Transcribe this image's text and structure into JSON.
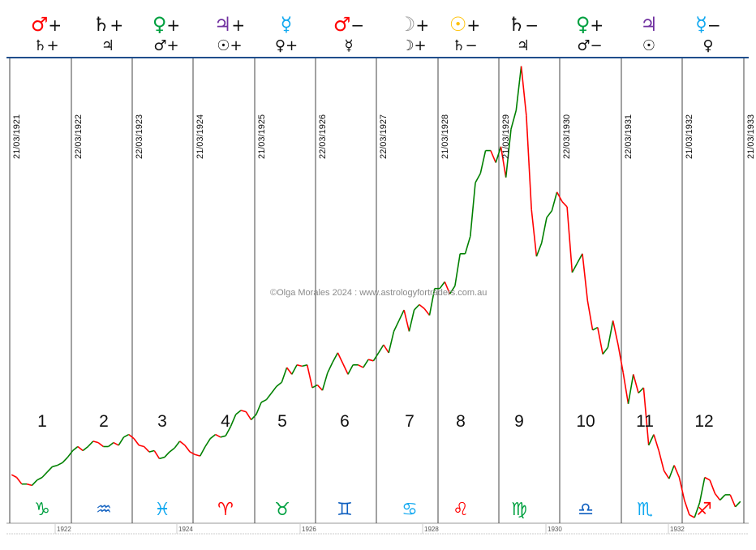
{
  "watermark": "©Olga Morales 2024 : www.astrologyfortraders.com.au",
  "columns": [
    {
      "n": "1",
      "date": "21/03/1921",
      "top": "♂",
      "top_color": "#ff0000",
      "top_sign": "+",
      "bottom": "♄",
      "bottom_sign": "+",
      "zodiac": "♑",
      "zodiac_color": "#00a040"
    },
    {
      "n": "2",
      "date": "22/03/1922",
      "top": "♄",
      "top_color": "#111111",
      "top_sign": "+",
      "bottom": "♃",
      "bottom_sign": "",
      "zodiac": "♒",
      "zodiac_color": "#1060c0"
    },
    {
      "n": "3",
      "date": "22/03/1923",
      "top": "♀",
      "top_color": "#00a040",
      "top_sign": "+",
      "bottom": "♂",
      "bottom_sign": "+",
      "zodiac": "♓",
      "zodiac_color": "#10a8f0"
    },
    {
      "n": "4",
      "date": "21/03/1924",
      "top": "♃",
      "top_color": "#7030a0",
      "top_sign": "+",
      "bottom": "☉",
      "bottom_sign": "+",
      "zodiac": "♈",
      "zodiac_color": "#ff0000"
    },
    {
      "n": "5",
      "date": "21/03/1925",
      "top": "☿",
      "top_color": "#10a8f0",
      "top_sign": "",
      "bottom": "♀",
      "bottom_sign": "+",
      "zodiac": "♉",
      "zodiac_color": "#00a040"
    },
    {
      "n": "6",
      "date": "22/03/1926",
      "top": "♂",
      "top_color": "#ff0000",
      "top_sign": "−",
      "bottom": "☿",
      "bottom_sign": "",
      "zodiac": "♊",
      "zodiac_color": "#1060c0"
    },
    {
      "n": "7",
      "date": "22/03/1927",
      "top": "☽",
      "top_color": "#909090",
      "top_sign": "+",
      "bottom": "☽",
      "bottom_sign": "+",
      "zodiac": "♋",
      "zodiac_color": "#10a8f0"
    },
    {
      "n": "8",
      "date": "21/03/1928",
      "top": "☉",
      "top_color": "#ffc000",
      "top_sign": "+",
      "bottom": "♄",
      "bottom_sign": "−",
      "zodiac": "♌",
      "zodiac_color": "#ff0000"
    },
    {
      "n": "9",
      "date": "21/03/1929",
      "top": "♄",
      "top_color": "#111111",
      "top_sign": "−",
      "bottom": "♃",
      "bottom_sign": "",
      "zodiac": "♍",
      "zodiac_color": "#00a040"
    },
    {
      "n": "10",
      "date": "22/03/1930",
      "top": "♀",
      "top_color": "#00a040",
      "top_sign": "+",
      "bottom": "♂",
      "bottom_sign": "−",
      "zodiac": "♎",
      "zodiac_color": "#1060c0"
    },
    {
      "n": "11",
      "date": "22/03/1931",
      "top": "♃",
      "top_color": "#7030a0",
      "top_sign": "",
      "bottom": "☉",
      "bottom_sign": "",
      "zodiac": "♏",
      "zodiac_color": "#10a8f0"
    },
    {
      "n": "12",
      "date": "21/03/1932",
      "top": "☿",
      "top_color": "#10a8f0",
      "top_sign": "−",
      "bottom": "♀",
      "bottom_sign": "",
      "zodiac": "♐",
      "zodiac_color": "#ff0000"
    }
  ],
  "last_date": "21/03/1933",
  "chart_data": {
    "type": "line",
    "title": "",
    "xlabel": "",
    "ylabel": "",
    "x_ticks": [
      "1922",
      "1924",
      "1926",
      "1928",
      "1930",
      "1932"
    ],
    "x_range": [
      1921.22,
      1933.25
    ],
    "y_range": [
      41,
      381
    ],
    "up_color": "#008000",
    "down_color": "#ff0000",
    "start": 1921.25,
    "step_months": 1,
    "values": [
      75,
      73,
      68,
      68,
      67,
      71,
      73,
      77,
      81,
      82,
      84,
      88,
      93,
      96,
      93,
      96,
      100,
      99,
      96,
      96,
      99,
      97,
      103,
      105,
      102,
      97,
      96,
      92,
      93,
      87,
      88,
      92,
      95,
      100,
      97,
      92,
      90,
      89,
      96,
      102,
      105,
      103,
      104,
      111,
      120,
      123,
      122,
      116,
      120,
      129,
      131,
      136,
      141,
      144,
      155,
      150,
      157,
      156,
      157,
      140,
      142,
      138,
      151,
      159,
      166,
      158,
      150,
      157,
      157,
      155,
      161,
      160,
      166,
      172,
      166,
      182,
      190,
      198,
      182,
      198,
      202,
      199,
      194,
      214,
      214,
      219,
      210,
      216,
      240,
      240,
      253,
      293,
      300,
      317,
      317,
      308,
      320,
      297,
      333,
      347,
      380,
      343,
      273,
      238,
      248,
      267,
      272,
      286,
      279,
      275,
      226,
      233,
      240,
      205,
      183,
      185,
      165,
      170,
      190,
      172,
      151,
      128,
      150,
      136,
      140,
      97,
      105,
      93,
      78,
      72,
      82,
      73,
      56,
      45,
      43,
      54,
      73,
      71,
      61,
      56,
      60,
      60,
      51,
      55
    ]
  }
}
